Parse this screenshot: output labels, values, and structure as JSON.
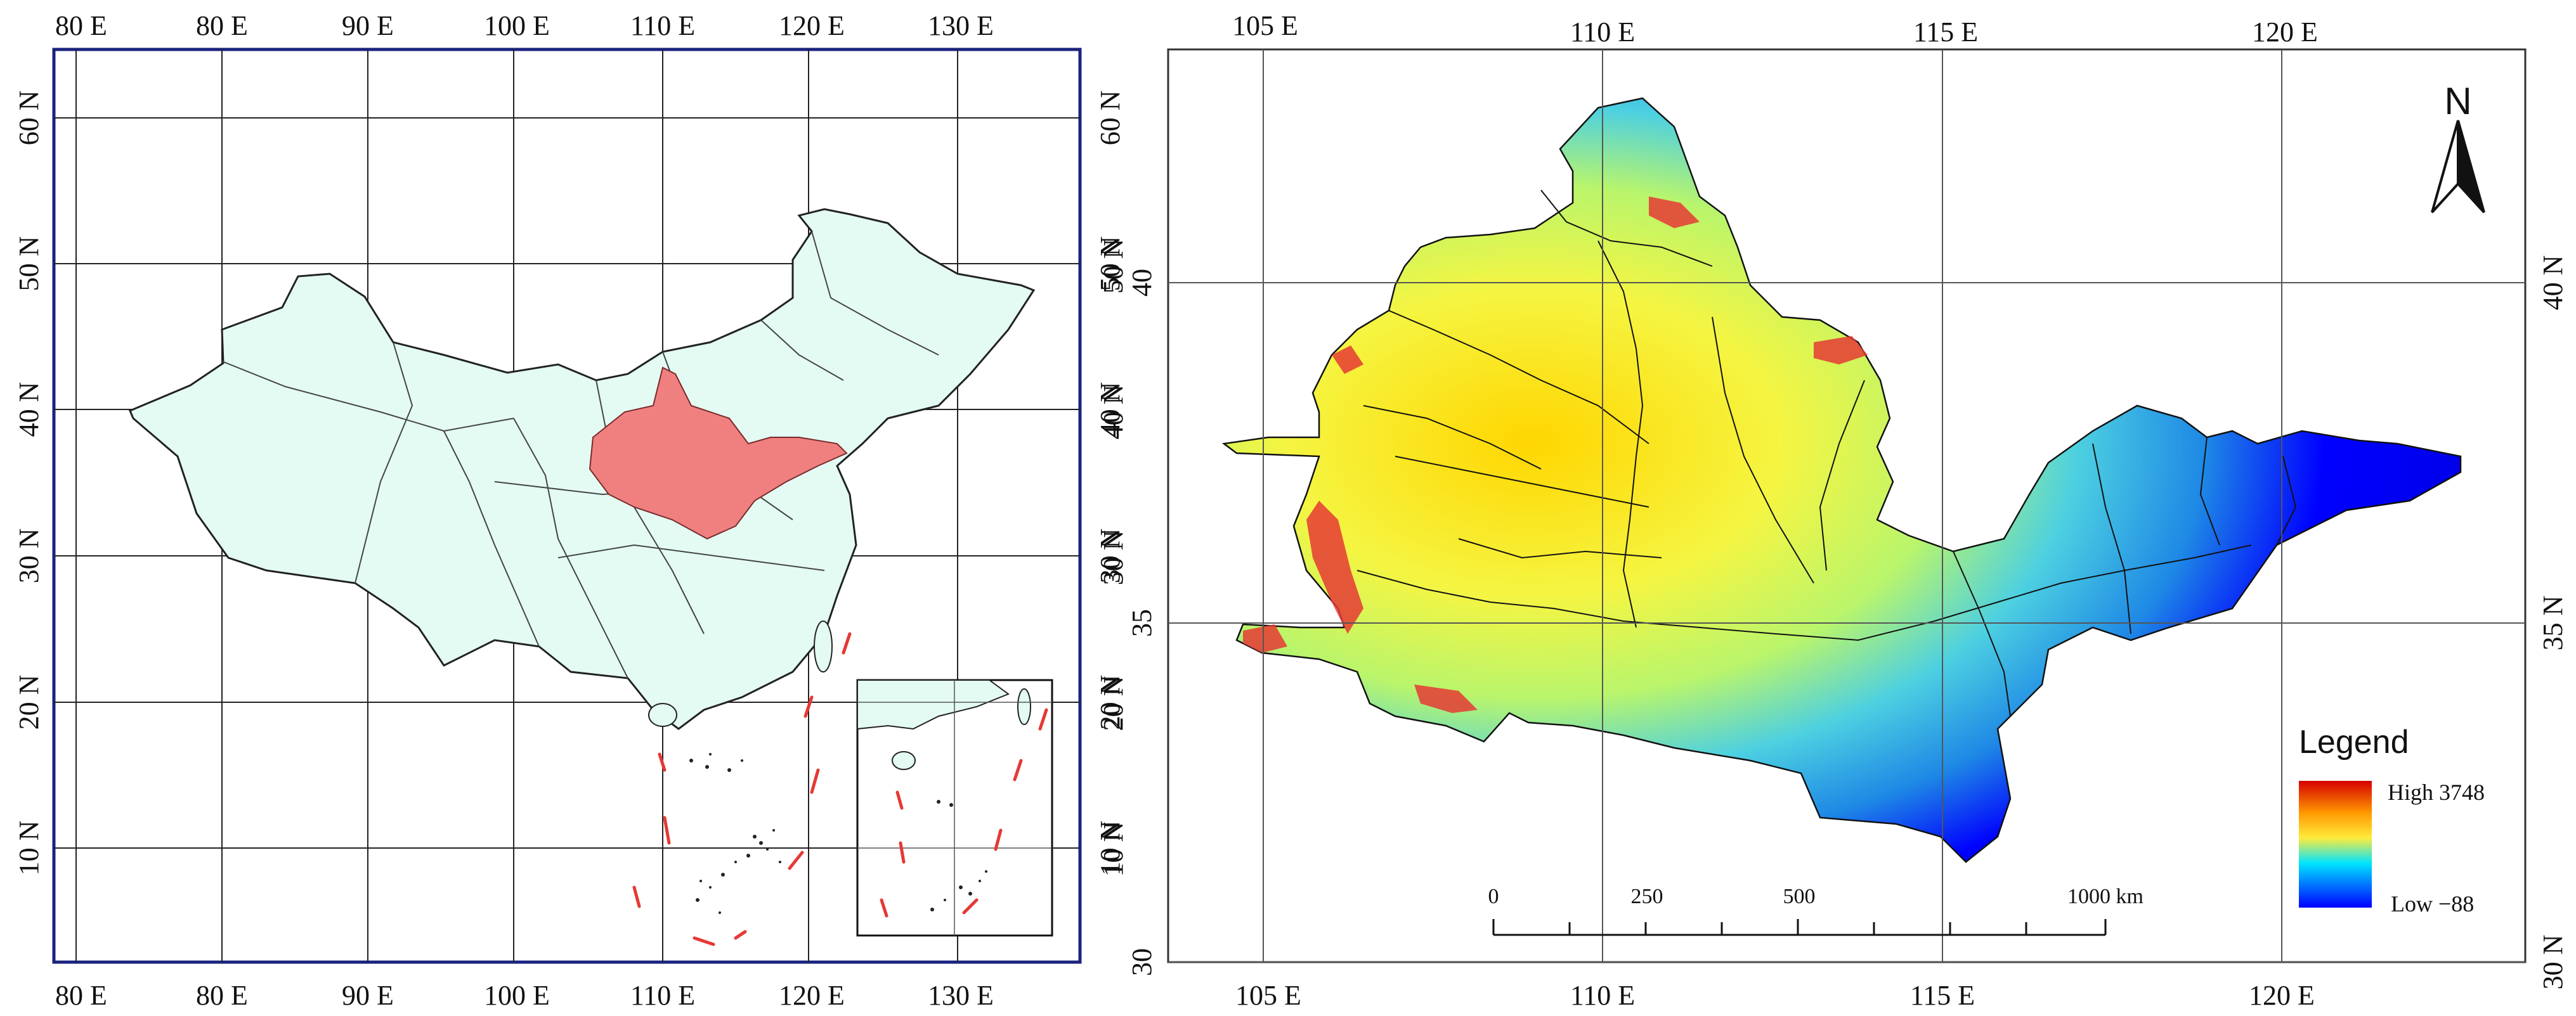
{
  "left_map": {
    "top_ticks": [
      "80 E",
      "80 E",
      "90 E",
      "100 E",
      "110 E",
      "120 E",
      "130 E"
    ],
    "bottom_ticks": [
      "80 E",
      "80 E",
      "90 E",
      "100 E",
      "110 E",
      "120 E",
      "130 E"
    ],
    "left_ticks": [
      "60 N",
      "50 N",
      "40 N",
      "30 N",
      "20 N",
      "10 N"
    ],
    "right_ticks": [
      "60 N",
      "50 N",
      "40 N",
      "30 N",
      "20 N",
      "10 N"
    ],
    "colors": {
      "country": "#e3fbf3",
      "highlight": "#f08080",
      "frame": "#1a237e",
      "dashed_line": "#e53935"
    }
  },
  "right_map": {
    "top_ticks": [
      "105 E",
      "110 E",
      "115 E",
      "120 E"
    ],
    "bottom_ticks": [
      "105 E",
      "110 E",
      "115 E",
      "120 E"
    ],
    "left_ticks": [
      "40",
      "35",
      "30"
    ],
    "right_ticks": [
      "40 N",
      "35 N",
      "30 N"
    ],
    "extra_left_ticks": [
      "50 N",
      "40 N",
      "30 N",
      "20 N",
      "10 N"
    ],
    "north_label": "N",
    "legend": {
      "title": "Legend",
      "high": "High 3748",
      "low": "Low −88"
    },
    "scale_bar": {
      "labels": [
        "0",
        "250",
        "500",
        "1000 km"
      ]
    },
    "colors": {
      "high": "#d50000",
      "mid_high": "#ffeb3b",
      "mid": "#00e5ff",
      "low": "#0000ff"
    }
  }
}
